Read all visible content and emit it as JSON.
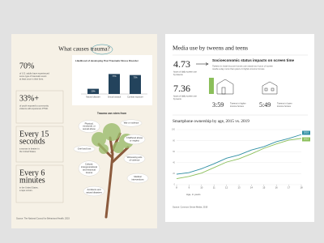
{
  "left": {
    "title": "What causes trauma?",
    "stats": [
      {
        "value": [
          "70%"
        ],
        "lines": [
          "of U.S. adults have experienced",
          "some type of traumatic event",
          "at least once in their lives."
        ]
      },
      {
        "value": [
          "33%+"
        ],
        "lines": [
          "of youth exposed to community",
          "violence will experience PTSD."
        ]
      },
      {
        "value": [
          "Every 15",
          "seconds"
        ],
        "lines": [
          "a woman is beaten in",
          "the United States."
        ]
      },
      {
        "value": [
          "Every 6",
          "minutes"
        ],
        "lines": [
          "in the United States,",
          "a rape occurs."
        ]
      }
    ],
    "tree_title": "Trauma can stem from",
    "causes": [
      [
        "Physical,",
        "emotional, or",
        "sexual abuse"
      ],
      [
        "War or violence"
      ],
      [
        "Childhood abuse",
        "or neglect"
      ],
      [
        "Grief and loss"
      ],
      [
        "Witnessing acts",
        "of violence"
      ],
      [
        "Cultural,",
        "intergenerational",
        "and historical",
        "trauma"
      ],
      [
        "Medical",
        "interventions"
      ],
      [
        "Accidents and",
        "natural disasters"
      ]
    ],
    "source": "Source: The National Council for Behavioral Health, 2019"
  },
  "right": {
    "title": "Media use by tweens and teens",
    "stats": [
      {
        "value": "4.73",
        "lines": [
          "hours of daily screen use",
          "by tweens"
        ]
      },
      {
        "value": "7.36",
        "lines": [
          "hours of daily screen use",
          "by teens"
        ]
      }
    ],
    "ses_title": "Socioeconomic status impacts on screen time",
    "ses_text": [
      "Tweens in lower-income homes use nearly two hours of screen",
      "media a day more than peers in higher-income homes."
    ],
    "income": [
      {
        "value": "3:59",
        "lines": [
          "Tweens in higher",
          "income homes"
        ]
      },
      {
        "value": "5:49",
        "lines": [
          "Tweens in lower",
          "income homes"
        ]
      }
    ],
    "source": "Source: Common Sense Media, 2019"
  },
  "chart_data": [
    {
      "type": "bar",
      "title": "Likelihood of developing Post Traumatic Stress Disorder",
      "categories": [
        "Natural disaster",
        "Sexual assault",
        "Combat exposure"
      ],
      "values": [
        20,
        77,
        73
      ],
      "value_labels": [
        "20%",
        "77%",
        "73%"
      ],
      "color": "#23435c",
      "ylim": [
        0,
        100
      ]
    },
    {
      "type": "line",
      "title": "Smartphone ownership by age, 2015 vs. 2019",
      "xlabel": "Age, in years",
      "x": [
        8,
        9,
        10,
        11,
        12,
        13,
        14,
        15,
        16,
        17,
        18
      ],
      "xlim": [
        8,
        18
      ],
      "xticks": [
        8,
        9,
        10,
        11,
        12,
        13,
        14,
        15,
        16,
        17,
        18
      ],
      "ylim": [
        0,
        100
      ],
      "yticks": [
        0,
        20,
        40,
        60,
        80,
        100
      ],
      "grid": true,
      "series": [
        {
          "name": "2019",
          "color": "#2f8fa3",
          "values": [
            19,
            22,
            29,
            38,
            48,
            54,
            63,
            69,
            78,
            84,
            91
          ]
        },
        {
          "name": "2015",
          "color": "#8bbf5a",
          "values": [
            11,
            15,
            21,
            31,
            41,
            47,
            56,
            66,
            74,
            81,
            84
          ]
        }
      ]
    }
  ]
}
